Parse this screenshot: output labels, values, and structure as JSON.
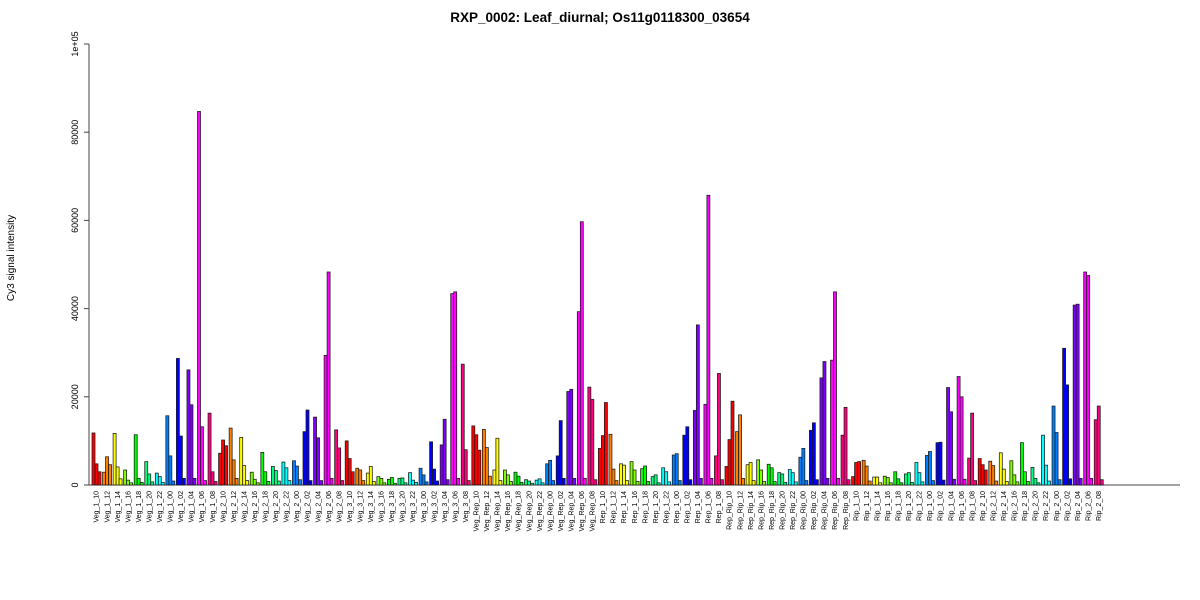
{
  "chart_data": {
    "type": "bar",
    "title": "RXP_0002: Leaf_diurnal; Os11g0118300_03654",
    "ylabel": "Cy3 signal intensity",
    "ylim": [
      0,
      100000
    ],
    "ytick_values": [
      0,
      20000,
      40000,
      60000,
      80000,
      100000
    ],
    "ytick_labels": [
      "0",
      "20000",
      "40000",
      "60000",
      "80000",
      "1e+05"
    ],
    "grid": "off",
    "legend": "none",
    "bars_per_category": 3,
    "groups": [
      "Veg_1",
      "Veg_2",
      "Veg_3",
      "Veg_Rep",
      "Rep_1",
      "Rep_Rip",
      "Rip_1",
      "Rip_2"
    ],
    "timepoints": [
      "10",
      "12",
      "14",
      "16",
      "18",
      "20",
      "22",
      "00",
      "02",
      "04",
      "06",
      "08"
    ],
    "timepoint_colors": [
      "#FF0000",
      "#FF8000",
      "#FFFF00",
      "#80FF00",
      "#00FF00",
      "#00FF80",
      "#00FFFF",
      "#0080FF",
      "#0000FF",
      "#8000FF",
      "#FF00FF",
      "#FF0080"
    ],
    "bar_stroke_color": "#1a1a1a",
    "axis_color": "#444444",
    "categories": [
      {
        "label": "Veg_1_10",
        "values": [
          11800,
          4800,
          3000
        ]
      },
      {
        "label": "Veg_1_12",
        "values": [
          2900,
          6400,
          4600
        ]
      },
      {
        "label": "Veg_1_14",
        "values": [
          11700,
          4100,
          1400
        ]
      },
      {
        "label": "Veg_1_16",
        "values": [
          3400,
          1100,
          500
        ]
      },
      {
        "label": "Veg_1_18",
        "values": [
          11400,
          1500,
          600
        ]
      },
      {
        "label": "Veg_1_20",
        "values": [
          5300,
          2500,
          700
        ]
      },
      {
        "label": "Veg_1_22",
        "values": [
          2700,
          1900,
          600
        ]
      },
      {
        "label": "Veg_1_00",
        "values": [
          15700,
          6600,
          900
        ]
      },
      {
        "label": "Veg_1_02",
        "values": [
          28700,
          11100,
          1500
        ]
      },
      {
        "label": "Veg_1_04",
        "values": [
          26100,
          18200,
          1500
        ]
      },
      {
        "label": "Veg_1_06",
        "values": [
          84700,
          13200,
          1000
        ]
      },
      {
        "label": "Veg_1_08",
        "values": [
          16300,
          3000,
          800
        ]
      },
      {
        "label": "Veg_2_10",
        "values": [
          7200,
          10200,
          8900
        ]
      },
      {
        "label": "Veg_2_12",
        "values": [
          12900,
          5700,
          1500
        ]
      },
      {
        "label": "Veg_2_14",
        "values": [
          10800,
          4400,
          1000
        ]
      },
      {
        "label": "Veg_2_16",
        "values": [
          2900,
          1300,
          500
        ]
      },
      {
        "label": "Veg_2_18",
        "values": [
          7400,
          3000,
          800
        ]
      },
      {
        "label": "Veg_2_20",
        "values": [
          4200,
          3300,
          900
        ]
      },
      {
        "label": "Veg_2_22",
        "values": [
          5200,
          3900,
          1000
        ]
      },
      {
        "label": "Veg_2_00",
        "values": [
          5500,
          4300,
          1200
        ]
      },
      {
        "label": "Veg_2_02",
        "values": [
          12100,
          17000,
          1000
        ]
      },
      {
        "label": "Veg_2_04",
        "values": [
          15400,
          10700,
          1000
        ]
      },
      {
        "label": "Veg_2_06",
        "values": [
          29400,
          48300,
          1500
        ]
      },
      {
        "label": "Veg_2_08",
        "values": [
          12500,
          8400,
          1000
        ]
      },
      {
        "label": "Veg_3_10",
        "values": [
          10000,
          6000,
          3000
        ]
      },
      {
        "label": "Veg_3_12",
        "values": [
          3800,
          3400,
          1000
        ]
      },
      {
        "label": "Veg_3_14",
        "values": [
          2700,
          4200,
          800
        ]
      },
      {
        "label": "Veg_3_16",
        "values": [
          1900,
          1500,
          500
        ]
      },
      {
        "label": "Veg_3_18",
        "values": [
          1300,
          1700,
          400
        ]
      },
      {
        "label": "Veg_3_20",
        "values": [
          1500,
          1600,
          500
        ]
      },
      {
        "label": "Veg_3_22",
        "values": [
          2800,
          1100,
          600
        ]
      },
      {
        "label": "Veg_3_00",
        "values": [
          3800,
          2300,
          700
        ]
      },
      {
        "label": "Veg_3_02",
        "values": [
          9800,
          3600,
          900
        ]
      },
      {
        "label": "Veg_3_04",
        "values": [
          9100,
          14900,
          1200
        ]
      },
      {
        "label": "Veg_3_06",
        "values": [
          43400,
          43800,
          1500
        ]
      },
      {
        "label": "Veg_3_08",
        "values": [
          27400,
          8000,
          1000
        ]
      },
      {
        "label": "Veg_Rep_10",
        "values": [
          13400,
          11400,
          7900
        ]
      },
      {
        "label": "Veg_Rep_12",
        "values": [
          12600,
          8500,
          2000
        ]
      },
      {
        "label": "Veg_Rep_14",
        "values": [
          3400,
          10600,
          1000
        ]
      },
      {
        "label": "Veg_Rep_16",
        "values": [
          3400,
          2300,
          800
        ]
      },
      {
        "label": "Veg_Rep_18",
        "values": [
          2900,
          2000,
          600
        ]
      },
      {
        "label": "Veg_Rep_20",
        "values": [
          1200,
          900,
          400
        ]
      },
      {
        "label": "Veg_Rep_22",
        "values": [
          1100,
          1400,
          500
        ]
      },
      {
        "label": "Veg_Rep_00",
        "values": [
          4800,
          5600,
          1000
        ]
      },
      {
        "label": "Veg_Rep_02",
        "values": [
          6600,
          14600,
          1500
        ]
      },
      {
        "label": "Veg_Rep_04",
        "values": [
          21200,
          21700,
          1500
        ]
      },
      {
        "label": "Veg_Rep_06",
        "values": [
          39300,
          59700,
          1500
        ]
      },
      {
        "label": "Veg_Rep_08",
        "values": [
          22200,
          19400,
          1200
        ]
      },
      {
        "label": "Rep_1_10",
        "values": [
          8300,
          11200,
          18700
        ]
      },
      {
        "label": "Rep_1_12",
        "values": [
          11500,
          3600,
          1000
        ]
      },
      {
        "label": "Rep_1_14",
        "values": [
          4800,
          4500,
          1000
        ]
      },
      {
        "label": "Rep_1_16",
        "values": [
          5300,
          3400,
          800
        ]
      },
      {
        "label": "Rep_1_18",
        "values": [
          3700,
          4300,
          800
        ]
      },
      {
        "label": "Rep_1_20",
        "values": [
          1900,
          2300,
          500
        ]
      },
      {
        "label": "Rep_1_22",
        "values": [
          3900,
          3000,
          700
        ]
      },
      {
        "label": "Rep_1_00",
        "values": [
          6800,
          7100,
          1000
        ]
      },
      {
        "label": "Rep_1_02",
        "values": [
          11300,
          13200,
          1200
        ]
      },
      {
        "label": "Rep_1_04",
        "values": [
          16900,
          36300,
          1500
        ]
      },
      {
        "label": "Rep_1_06",
        "values": [
          18300,
          65700,
          1500
        ]
      },
      {
        "label": "Rep_1_08",
        "values": [
          6600,
          25300,
          1200
        ]
      },
      {
        "label": "Rep_Rip_10",
        "values": [
          4200,
          10300,
          19000
        ]
      },
      {
        "label": "Rep_Rip_12",
        "values": [
          12100,
          15900,
          1500
        ]
      },
      {
        "label": "Rep_Rip_14",
        "values": [
          4600,
          5100,
          1000
        ]
      },
      {
        "label": "Rep_Rip_16",
        "values": [
          5700,
          3400,
          800
        ]
      },
      {
        "label": "Rep_Rip_18",
        "values": [
          4700,
          3900,
          800
        ]
      },
      {
        "label": "Rep_Rip_20",
        "values": [
          2800,
          2500,
          600
        ]
      },
      {
        "label": "Rep_Rip_22",
        "values": [
          3500,
          2800,
          700
        ]
      },
      {
        "label": "Rep_Rip_00",
        "values": [
          6300,
          8300,
          1000
        ]
      },
      {
        "label": "Rep_Rip_02",
        "values": [
          12400,
          14100,
          1200
        ]
      },
      {
        "label": "Rep_Rip_04",
        "values": [
          24300,
          28000,
          1500
        ]
      },
      {
        "label": "Rep_Rip_06",
        "values": [
          28300,
          43800,
          1500
        ]
      },
      {
        "label": "Rep_Rip_08",
        "values": [
          11300,
          17600,
          1200
        ]
      },
      {
        "label": "Rip_1_10",
        "values": [
          1900,
          5100,
          5300
        ]
      },
      {
        "label": "Rip_1_12",
        "values": [
          5600,
          4300,
          900
        ]
      },
      {
        "label": "Rip_1_14",
        "values": [
          1800,
          1800,
          500
        ]
      },
      {
        "label": "Rip_1_16",
        "values": [
          2000,
          1700,
          500
        ]
      },
      {
        "label": "Rip_1_18",
        "values": [
          3000,
          1400,
          500
        ]
      },
      {
        "label": "Rip_1_20",
        "values": [
          2500,
          2800,
          600
        ]
      },
      {
        "label": "Rip_1_22",
        "values": [
          5100,
          2800,
          700
        ]
      },
      {
        "label": "Rip_1_00",
        "values": [
          6700,
          7600,
          1000
        ]
      },
      {
        "label": "Rip_1_02",
        "values": [
          9600,
          9700,
          1100
        ]
      },
      {
        "label": "Rip_1_04",
        "values": [
          22100,
          16600,
          1300
        ]
      },
      {
        "label": "Rip_1_06",
        "values": [
          24600,
          20000,
          1300
        ]
      },
      {
        "label": "Rip_1_08",
        "values": [
          6100,
          16300,
          1000
        ]
      },
      {
        "label": "Rip_2_10",
        "values": [
          6000,
          4600,
          3400
        ]
      },
      {
        "label": "Rip_2_12",
        "values": [
          5400,
          4400,
          900
        ]
      },
      {
        "label": "Rip_2_14",
        "values": [
          7300,
          3600,
          800
        ]
      },
      {
        "label": "Rip_2_16",
        "values": [
          5500,
          2300,
          700
        ]
      },
      {
        "label": "Rip_2_18",
        "values": [
          9600,
          3000,
          800
        ]
      },
      {
        "label": "Rip_2_20",
        "values": [
          4000,
          1500,
          500
        ]
      },
      {
        "label": "Rip_2_22",
        "values": [
          11300,
          4500,
          900
        ]
      },
      {
        "label": "Rip_2_00",
        "values": [
          17900,
          11900,
          1200
        ]
      },
      {
        "label": "Rip_2_02",
        "values": [
          31000,
          22700,
          1400
        ]
      },
      {
        "label": "Rip_2_04",
        "values": [
          40800,
          41000,
          1500
        ]
      },
      {
        "label": "Rip_2_06",
        "values": [
          48300,
          47500,
          1500
        ]
      },
      {
        "label": "Rip_2_08",
        "values": [
          14800,
          17900,
          1200
        ]
      }
    ]
  }
}
